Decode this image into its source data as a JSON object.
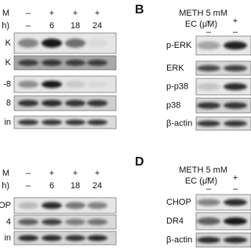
{
  "panel_a": {
    "conditions": [
      {
        "label": "M",
        "values": [
          "–",
          "+",
          "+",
          "+"
        ]
      },
      {
        "label": "h)",
        "values": [
          "–",
          "6",
          "18",
          "24"
        ]
      }
    ],
    "bands": [
      "K",
      "K",
      "-8",
      "8",
      "in"
    ]
  },
  "panel_b": {
    "letter": "B",
    "conditions": [
      {
        "label": "METH 5 mM",
        "values": [
          "–",
          "+"
        ]
      },
      {
        "label": "EC (μM)",
        "values": [
          "–",
          "–"
        ]
      }
    ],
    "bands": [
      "p-ERK",
      "ERK",
      "p-p38",
      "p38",
      "β-actin"
    ]
  },
  "panel_c": {
    "conditions": [
      {
        "label": "M",
        "values": [
          "–",
          "+",
          "+",
          "+"
        ]
      },
      {
        "label": "h)",
        "values": [
          "–",
          "6",
          "18",
          "24"
        ]
      }
    ],
    "bands": [
      "OP",
      "4",
      "in"
    ]
  },
  "panel_d": {
    "letter": "D",
    "conditions": [
      {
        "label": "METH 5 mM",
        "values": [
          "–",
          "+"
        ]
      },
      {
        "label": "EC (μM)",
        "values": [
          "–",
          "–"
        ]
      }
    ],
    "bands": [
      "CHOP",
      "DR4",
      "β-actin"
    ]
  }
}
